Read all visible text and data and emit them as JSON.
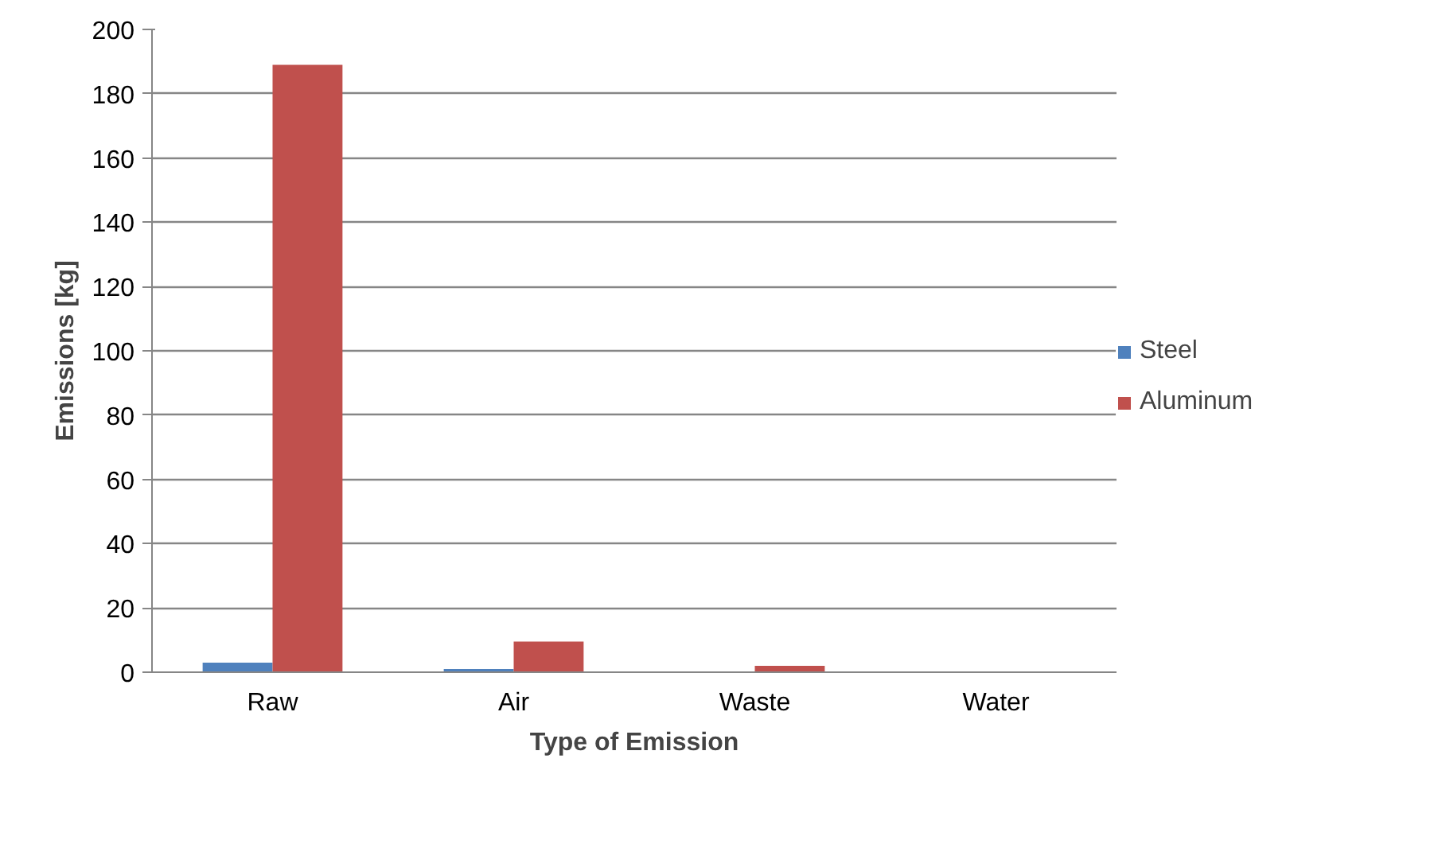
{
  "chart_data": {
    "type": "bar",
    "xlabel": "Type of Emission",
    "ylabel": "Emissions [kg]",
    "categories": [
      "Raw",
      "Air",
      "Waste",
      "Water"
    ],
    "series": [
      {
        "name": "Steel",
        "color": "#4f81bd",
        "values": [
          3,
          1,
          0,
          0
        ]
      },
      {
        "name": "Aluminum",
        "color": "#c0504d",
        "values": [
          189,
          9.5,
          2,
          0
        ]
      }
    ],
    "ylim": [
      0,
      200
    ],
    "yticks": [
      0,
      20,
      40,
      60,
      80,
      100,
      120,
      140,
      160,
      180,
      200
    ],
    "grid": "y",
    "legend": "right"
  }
}
